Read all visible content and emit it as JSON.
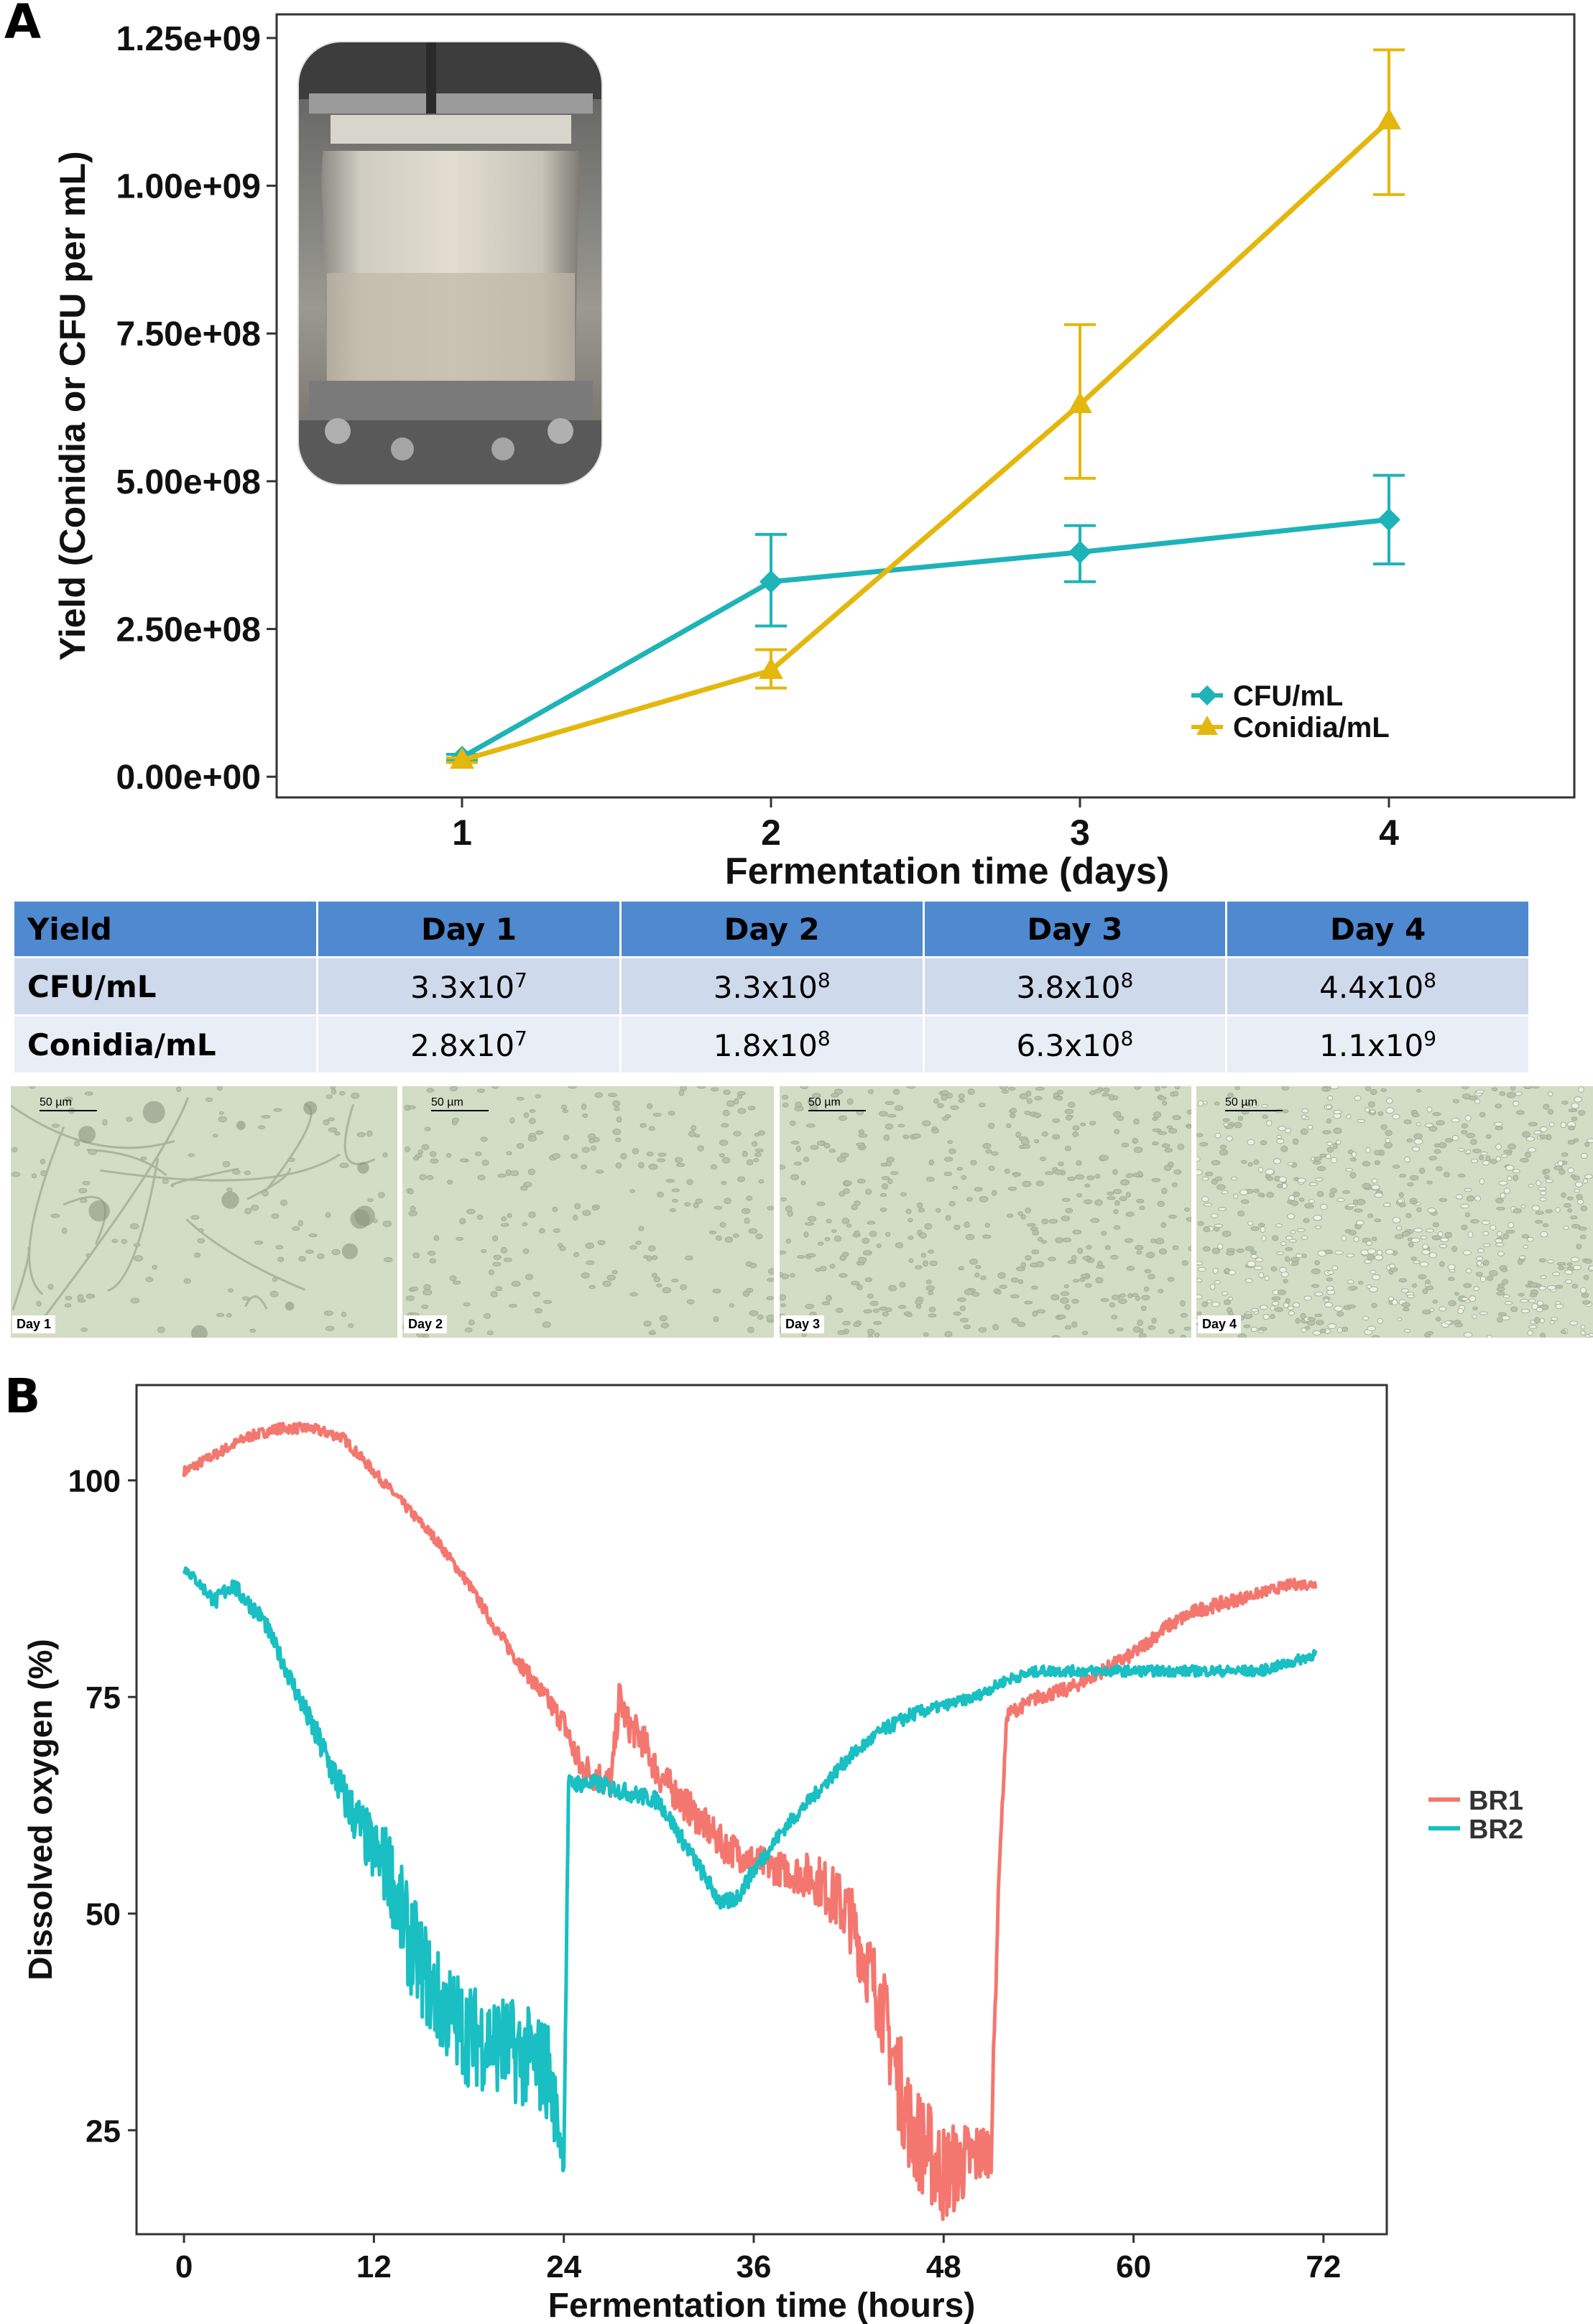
{
  "panels": {
    "a": "A",
    "b": "B"
  },
  "chart_data": [
    {
      "type": "line",
      "title": "",
      "xlabel": "Fermentation time (days)",
      "ylabel": "Yield (Conidia or CFU per mL)",
      "x": [
        1,
        2,
        3,
        4
      ],
      "xlim": [
        0.4,
        4.6
      ],
      "ylim": [
        -35000000,
        1290000000
      ],
      "xticks": [
        1,
        2,
        3,
        4
      ],
      "yticks": [
        0,
        250000000,
        500000000,
        750000000,
        1000000000,
        1250000000
      ],
      "ytick_labels": [
        "0.00e+00",
        "2.50e+08",
        "5.00e+08",
        "7.50e+08",
        "1.00e+09",
        "1.25e+09"
      ],
      "legend_position": "bottom-right",
      "series": [
        {
          "name": "CFU/mL",
          "color": "#1eb3b8",
          "marker": "diamond",
          "values": [
            33000000,
            330000000,
            380000000,
            435000000
          ],
          "err_low": [
            28000000,
            255000000,
            330000000,
            360000000
          ],
          "err_high": [
            38000000,
            410000000,
            425000000,
            510000000
          ]
        },
        {
          "name": "Conidia/mL",
          "color": "#e4b70e",
          "marker": "triangle",
          "values": [
            28000000,
            180000000,
            630000000,
            1110000000
          ],
          "err_low": [
            24000000,
            150000000,
            505000000,
            985000000
          ],
          "err_high": [
            32000000,
            215000000,
            765000000,
            1230000000
          ]
        }
      ]
    },
    {
      "type": "line",
      "title": "",
      "xlabel": "Fermentation time (hours)",
      "ylabel": "Dissolved oxygen (%)",
      "xlim": [
        -3,
        76
      ],
      "ylim": [
        13,
        111
      ],
      "xticks": [
        0,
        12,
        24,
        36,
        48,
        60,
        72
      ],
      "yticks": [
        25,
        50,
        75,
        100
      ],
      "legend_position": "right",
      "series": [
        {
          "name": "BR1",
          "color": "#f4776f",
          "x": [
            0,
            2,
            4,
            6,
            8,
            10,
            12,
            14,
            16,
            18,
            20,
            22,
            24,
            25,
            26,
            27,
            27.5,
            28,
            29,
            30,
            32,
            34,
            36,
            38,
            40,
            42,
            44,
            45,
            46,
            48,
            50,
            51,
            51.5,
            52,
            54,
            56,
            58,
            60,
            62,
            64,
            66,
            68,
            70,
            71.5
          ],
          "y": [
            101,
            103,
            105,
            106,
            106,
            105,
            101,
            97,
            93,
            88,
            82,
            77,
            72,
            67,
            66,
            65,
            75,
            72,
            70,
            66,
            62,
            58,
            56,
            55,
            54,
            50,
            40,
            32,
            25,
            20,
            22,
            23,
            55,
            73,
            75,
            76,
            78,
            80,
            83,
            85,
            86,
            87,
            88,
            88
          ],
          "noise": [
            0.6,
            0.6,
            0.6,
            0.6,
            0.6,
            0.6,
            0.6,
            0.6,
            0.6,
            0.6,
            0.8,
            1.0,
            1.5,
            2.0,
            2.0,
            2.0,
            2.0,
            2.0,
            2.0,
            2.0,
            2.0,
            2.0,
            2.0,
            2.0,
            3.0,
            4.0,
            5.0,
            6.0,
            6.0,
            6.0,
            4.0,
            3.0,
            0.5,
            0.8,
            0.8,
            0.8,
            0.8,
            0.8,
            0.8,
            0.8,
            0.8,
            0.6,
            0.6,
            0.6
          ]
        },
        {
          "name": "BR2",
          "color": "#19bfc2",
          "x": [
            0,
            1,
            2,
            3,
            4,
            5,
            6,
            8,
            10,
            12,
            13,
            14,
            15,
            16,
            18,
            20,
            22,
            23,
            24,
            24.3,
            25,
            26,
            28,
            30,
            32,
            34,
            35,
            36,
            38,
            40,
            42,
            44,
            46,
            48,
            50,
            52,
            54,
            56,
            58,
            60,
            62,
            64,
            66,
            68,
            70,
            71.5
          ],
          "y": [
            90,
            88,
            86,
            88,
            86,
            84,
            80,
            72,
            64,
            57,
            55,
            48,
            44,
            40,
            36,
            35,
            33,
            32,
            22,
            65,
            65,
            65,
            64,
            63,
            57,
            51,
            52,
            55,
            60,
            64,
            68,
            71,
            73,
            74,
            75,
            77,
            78,
            78,
            78,
            78,
            78,
            78,
            78,
            78,
            79,
            80
          ],
          "noise": [
            0.6,
            0.6,
            1.0,
            1.0,
            1.0,
            1.0,
            1.0,
            1.5,
            2.5,
            4.0,
            5.0,
            6.0,
            6.0,
            6.0,
            6.0,
            6.0,
            6.0,
            6.0,
            2.0,
            1.0,
            1.0,
            1.0,
            1.0,
            1.0,
            1.0,
            1.0,
            1.0,
            1.0,
            0.8,
            0.8,
            0.8,
            0.8,
            0.8,
            0.6,
            0.6,
            0.6,
            0.6,
            0.6,
            0.6,
            0.6,
            0.6,
            0.6,
            0.6,
            0.6,
            0.6,
            0.6
          ]
        }
      ]
    },
    {
      "type": "table",
      "columns": [
        "Yield",
        "Day 1",
        "Day 2",
        "Day 3",
        "Day 4"
      ],
      "rows": [
        {
          "label": "CFU/mL",
          "cells": [
            {
              "base": "3.3x10",
              "exp": "7"
            },
            {
              "base": "3.3x10",
              "exp": "8"
            },
            {
              "base": "3.8x10",
              "exp": "8"
            },
            {
              "base": "4.4x10",
              "exp": "8"
            }
          ]
        },
        {
          "label": "Conidia/mL",
          "cells": [
            {
              "base": "2.8x10",
              "exp": "7"
            },
            {
              "base": "1.8x10",
              "exp": "8"
            },
            {
              "base": "6.3x10",
              "exp": "8"
            },
            {
              "base": "1.1x10",
              "exp": "9"
            }
          ]
        }
      ]
    }
  ],
  "micrographs": [
    {
      "day_label": "Day 1",
      "scale_label": "50 µm",
      "density": 0.15
    },
    {
      "day_label": "Day 2",
      "scale_label": "50 µm",
      "density": 0.35
    },
    {
      "day_label": "Day 3",
      "scale_label": "50 µm",
      "density": 0.65
    },
    {
      "day_label": "Day 4",
      "scale_label": "50 µm",
      "density": 1.0
    }
  ],
  "colors": {
    "table_header": "#4f89cf",
    "table_row_a": "#cfd9ec",
    "table_row_b": "#e8edf6",
    "micro_bg": "#d3dcc4"
  }
}
